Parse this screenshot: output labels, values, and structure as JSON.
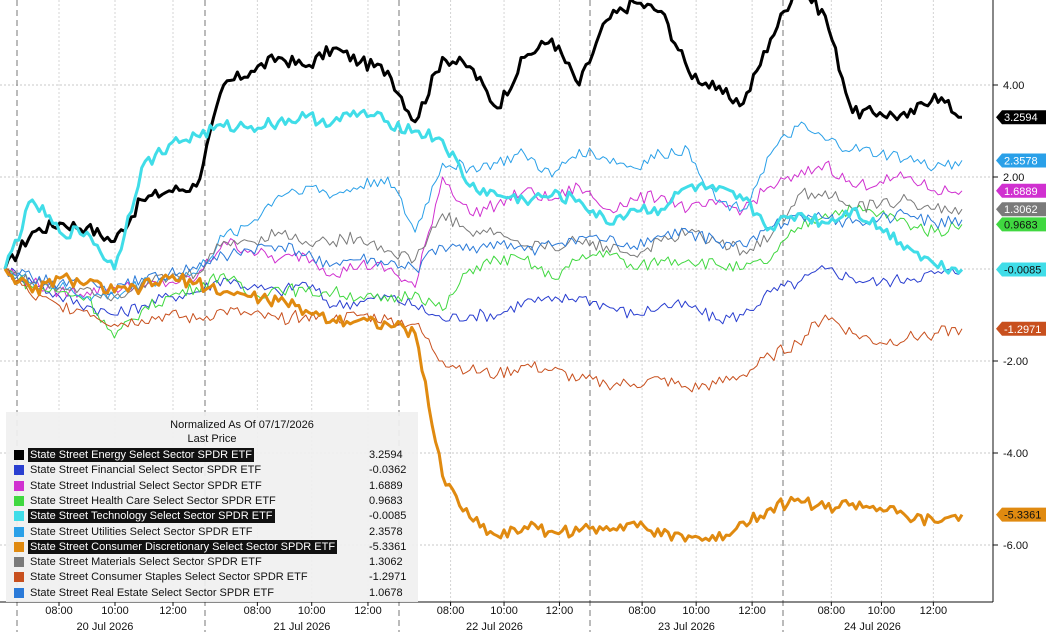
{
  "chart_data": {
    "type": "line",
    "header": {
      "line1": "Normalized As Of 07/17/2026",
      "line2": "Last Price"
    },
    "y_ticks": [
      "4.00",
      "2.00",
      "-2.00",
      "-4.00",
      "-6.00"
    ],
    "ylim": [
      -7.8,
      7.2
    ],
    "x_ticks": [
      {
        "day": 0,
        "labels": [
          "08:00",
          "10:00",
          "12:00"
        ]
      },
      {
        "day": 1,
        "labels": [
          "08:00",
          "10:00",
          "12:00"
        ]
      },
      {
        "day": 2,
        "labels": [
          "08:00",
          "10:00",
          "12:00"
        ]
      },
      {
        "day": 3,
        "labels": [
          "08:00",
          "10:00",
          "12:00"
        ]
      },
      {
        "day": 4,
        "labels": [
          "08:00",
          "10:00",
          "12:00"
        ]
      }
    ],
    "days": [
      "20 Jul 2026",
      "21 Jul 2026",
      "22 Jul 2026",
      "23 Jul 2026",
      "24 Jul 2026"
    ],
    "grid": true,
    "legend_position": "bottom-left",
    "series": [
      {
        "name": "State Street Energy Select Sector SPDR ETF",
        "last": "3.2594",
        "color": "#000000",
        "width": 3,
        "highlight": true,
        "tag": "3.2594",
        "tag_bg": "#000000",
        "tag_fg": "#ffffff",
        "values": [
          0,
          0.8,
          1.0,
          0.9,
          0.6,
          1.5,
          1.7,
          1.8,
          4.0,
          4.3,
          4.6,
          4.4,
          4.8,
          4.5,
          4.3,
          3.2,
          4.6,
          4.4,
          3.5,
          4.6,
          5.0,
          4.0,
          5.4,
          5.8,
          5.6,
          4.3,
          3.9,
          3.6,
          5.0,
          6.2,
          5.5,
          3.4,
          3.4,
          3.3,
          3.8,
          3.3
        ]
      },
      {
        "name": "State Street Financial Select Sector SPDR ETF",
        "last": "-0.0362",
        "color": "#2a3fd0",
        "width": 1,
        "highlight": false,
        "tag": null,
        "values": [
          0,
          -0.3,
          -0.6,
          -0.8,
          -1.0,
          -0.8,
          -0.6,
          -0.5,
          -0.2,
          -0.4,
          -0.5,
          -0.3,
          -0.8,
          -0.7,
          -0.6,
          -0.8,
          -1.1,
          -1.0,
          -1.0,
          -0.7,
          -0.7,
          -0.6,
          -0.8,
          -1.0,
          -0.8,
          -0.8,
          -1.1,
          -1.0,
          -0.5,
          -0.3,
          0,
          -0.2,
          -0.3,
          -0.2,
          -0.1,
          -0.04
        ]
      },
      {
        "name": "State Street Industrial Select Sector SPDR ETF",
        "last": "1.6889",
        "color": "#d030d0",
        "width": 1,
        "highlight": false,
        "tag": "1.6889",
        "tag_bg": "#d030d0",
        "tag_fg": "#ffffff",
        "values": [
          0,
          -0.3,
          -0.5,
          -0.5,
          -0.4,
          -0.4,
          -0.3,
          -0.2,
          0.6,
          0.4,
          0.2,
          0.3,
          -0.1,
          0.1,
          0.0,
          -0.4,
          2.0,
          1.2,
          1.4,
          1.7,
          1.5,
          1.8,
          1.3,
          1.5,
          1.6,
          1.3,
          1.4,
          1.3,
          1.8,
          2.0,
          2.3,
          1.8,
          1.9,
          2.0,
          1.7,
          1.7
        ]
      },
      {
        "name": "State Street Health Care Select Sector SPDR ETF",
        "last": "0.9683",
        "color": "#40d840",
        "width": 1,
        "highlight": false,
        "tag": "0.9683",
        "tag_bg": "#40d840",
        "tag_fg": "#111111",
        "values": [
          0,
          -0.4,
          -0.5,
          -0.6,
          -1.5,
          -0.9,
          -0.6,
          -0.4,
          -0.1,
          -0.6,
          -0.4,
          -0.5,
          -0.5,
          -0.6,
          -0.7,
          -0.5,
          -0.9,
          0.0,
          0.2,
          0.2,
          -0.2,
          0.2,
          0.4,
          0.0,
          0.2,
          0.2,
          0.1,
          0.0,
          0.2,
          0.9,
          1.2,
          1.3,
          1.2,
          1.0,
          0.8,
          0.97
        ]
      },
      {
        "name": "State Street Technology Select Sector SPDR ETF",
        "last": "-0.0085",
        "color": "#40dde8",
        "width": 3,
        "highlight": true,
        "tag": "-0.0085",
        "tag_bg": "#40dde8",
        "tag_fg": "#111111",
        "values": [
          0,
          1.5,
          0.8,
          0.8,
          0.0,
          2.2,
          2.7,
          2.9,
          3.1,
          3.1,
          3.2,
          3.3,
          3.2,
          3.4,
          3.2,
          3.0,
          2.8,
          1.8,
          1.6,
          1.5,
          1.6,
          1.5,
          1.0,
          1.3,
          1.3,
          1.8,
          1.7,
          1.5,
          0.9,
          1.2,
          1.0,
          1.3,
          0.9,
          0.5,
          0.1,
          -0.01
        ]
      },
      {
        "name": "State Street Utilities Select Sector SPDR ETF",
        "last": "2.3578",
        "color": "#2aa0e8",
        "width": 1,
        "highlight": false,
        "tag": "2.3578",
        "tag_bg": "#2aa0e8",
        "tag_fg": "#ffffff",
        "values": [
          0,
          -0.3,
          -0.4,
          -0.6,
          -0.6,
          -0.3,
          -0.2,
          -0.1,
          0.7,
          1.0,
          1.6,
          1.8,
          1.6,
          1.8,
          2.0,
          0.8,
          2.3,
          2.2,
          2.3,
          2.5,
          2.0,
          2.6,
          2.4,
          2.2,
          2.5,
          2.6,
          1.5,
          1.3,
          2.5,
          3.1,
          2.8,
          2.6,
          2.5,
          2.4,
          2.2,
          2.36
        ]
      },
      {
        "name": "State Street Consumer Discretionary Select Sector SPDR ETF",
        "last": "-5.3361",
        "color": "#e08a10",
        "width": 3,
        "highlight": true,
        "tag": "-5.3361",
        "tag_bg": "#e08a10",
        "tag_fg": "#111111",
        "values": [
          0,
          -0.5,
          -0.2,
          -0.3,
          -0.5,
          -0.4,
          -0.2,
          -0.3,
          -0.5,
          -0.6,
          -0.7,
          -0.9,
          -1.1,
          -1.1,
          -1.2,
          -1.4,
          -4.5,
          -5.4,
          -5.8,
          -5.6,
          -5.7,
          -5.7,
          -5.6,
          -5.5,
          -5.8,
          -5.8,
          -5.9,
          -5.5,
          -5.2,
          -5.0,
          -5.2,
          -5.1,
          -5.2,
          -5.4,
          -5.5,
          -5.34
        ]
      },
      {
        "name": "State Street Materials Select Sector SPDR ETF",
        "last": "1.3062",
        "color": "#7a7a7a",
        "width": 1,
        "highlight": false,
        "tag": "1.3062",
        "tag_bg": "#7a7a7a",
        "tag_fg": "#ffffff",
        "values": [
          0,
          -0.3,
          -0.4,
          -0.4,
          -0.6,
          -0.3,
          -0.2,
          -0.1,
          0.6,
          0.6,
          0.8,
          0.6,
          0.6,
          0.7,
          0.4,
          0.2,
          1.2,
          0.8,
          0.8,
          0.5,
          0.5,
          0.6,
          0.5,
          0.3,
          0.6,
          0.8,
          0.6,
          0.4,
          0.7,
          1.6,
          1.7,
          1.3,
          1.4,
          1.5,
          1.3,
          1.3
        ]
      },
      {
        "name": "State Street Consumer Staples Select Sector SPDR ETF",
        "last": "-1.2971",
        "color": "#c8501e",
        "width": 1,
        "highlight": false,
        "tag": "-1.2971",
        "tag_bg": "#c8501e",
        "tag_fg": "#ffffff",
        "values": [
          0,
          -0.6,
          -0.8,
          -0.9,
          -1.2,
          -1.1,
          -1.0,
          -1.1,
          -0.9,
          -1.0,
          -1.1,
          -1.0,
          -1.1,
          -1.0,
          -1.1,
          -1.2,
          -2.0,
          -2.2,
          -2.3,
          -2.1,
          -2.2,
          -2.4,
          -2.5,
          -2.5,
          -2.4,
          -2.6,
          -2.5,
          -2.3,
          -1.9,
          -1.6,
          -1.0,
          -1.4,
          -1.6,
          -1.5,
          -1.4,
          -1.3
        ]
      },
      {
        "name": "State Street Real Estate Select Sector SPDR ETF",
        "last": "1.0678",
        "color": "#2a7ad8",
        "width": 1,
        "highlight": false,
        "tag": null,
        "values": [
          0,
          -0.2,
          -0.3,
          -0.3,
          -0.5,
          -0.2,
          -0.1,
          0.0,
          0.3,
          0.4,
          0.5,
          0.3,
          0.1,
          0.2,
          0.1,
          0.0,
          0.5,
          0.4,
          0.6,
          0.4,
          0.5,
          0.7,
          0.6,
          0.5,
          0.7,
          0.8,
          0.6,
          0.5,
          0.9,
          1.2,
          1.1,
          1.0,
          1.1,
          1.2,
          1.0,
          1.07
        ]
      }
    ]
  }
}
